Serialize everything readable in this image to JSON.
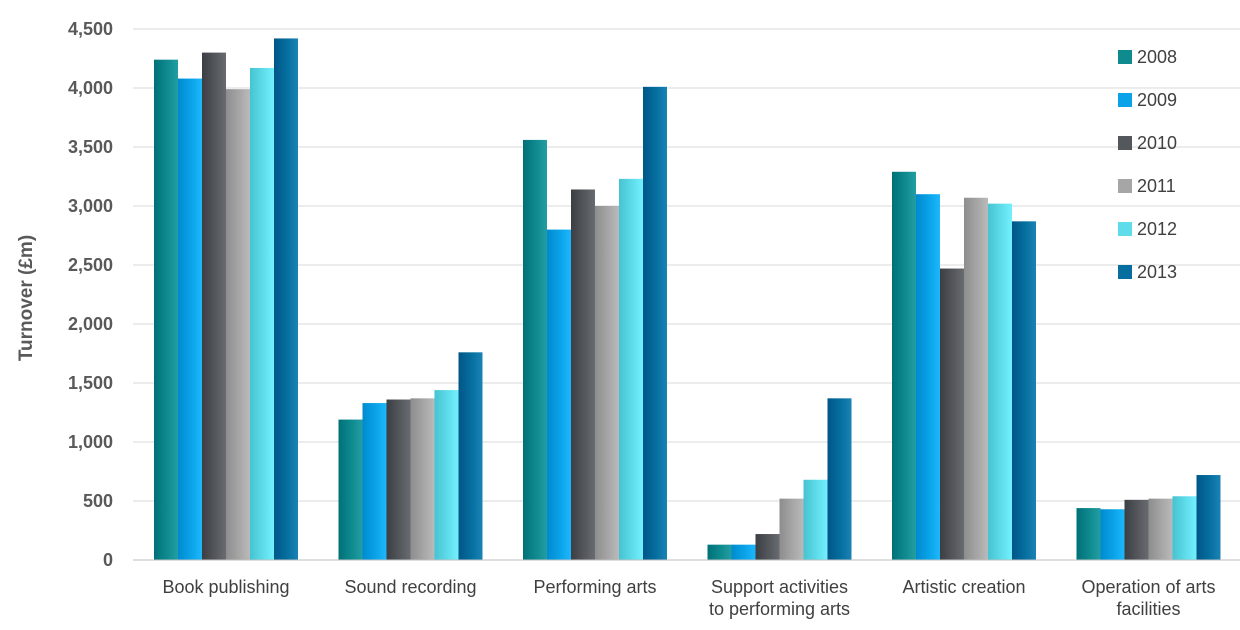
{
  "chart_data": {
    "type": "bar",
    "ylabel": "Turnover (£m)",
    "ylim": [
      0,
      4500
    ],
    "yticks": [
      "0",
      "500",
      "1,000",
      "1,500",
      "2,000",
      "2,500",
      "3,000",
      "3,500",
      "4,000",
      "4,500"
    ],
    "ytick_values": [
      0,
      500,
      1000,
      1500,
      2000,
      2500,
      3000,
      3500,
      4000,
      4500
    ],
    "grid": true,
    "legend": "right",
    "categories": [
      [
        "Book publishing"
      ],
      [
        "Sound recording"
      ],
      [
        "Performing arts"
      ],
      [
        "Support activities",
        "to performing arts"
      ],
      [
        "Artistic creation"
      ],
      [
        "Operation of arts",
        "facilities"
      ]
    ],
    "series": [
      {
        "name": "2008",
        "color": "#0f8a8f",
        "values": [
          4240,
          1190,
          3560,
          130,
          3290,
          440
        ]
      },
      {
        "name": "2009",
        "color": "#0aa3e8",
        "values": [
          4080,
          1330,
          2800,
          130,
          3100,
          430
        ]
      },
      {
        "name": "2010",
        "color": "#54575c",
        "values": [
          4300,
          1360,
          3140,
          220,
          2470,
          510
        ]
      },
      {
        "name": "2011",
        "color": "#a6a6a6",
        "values": [
          3990,
          1370,
          3000,
          520,
          3070,
          520
        ]
      },
      {
        "name": "2012",
        "color": "#5fdcea",
        "values": [
          4170,
          1440,
          3230,
          680,
          3020,
          540
        ]
      },
      {
        "name": "2013",
        "color": "#066fa0",
        "values": [
          4420,
          1760,
          4010,
          1370,
          2870,
          720
        ]
      }
    ]
  }
}
